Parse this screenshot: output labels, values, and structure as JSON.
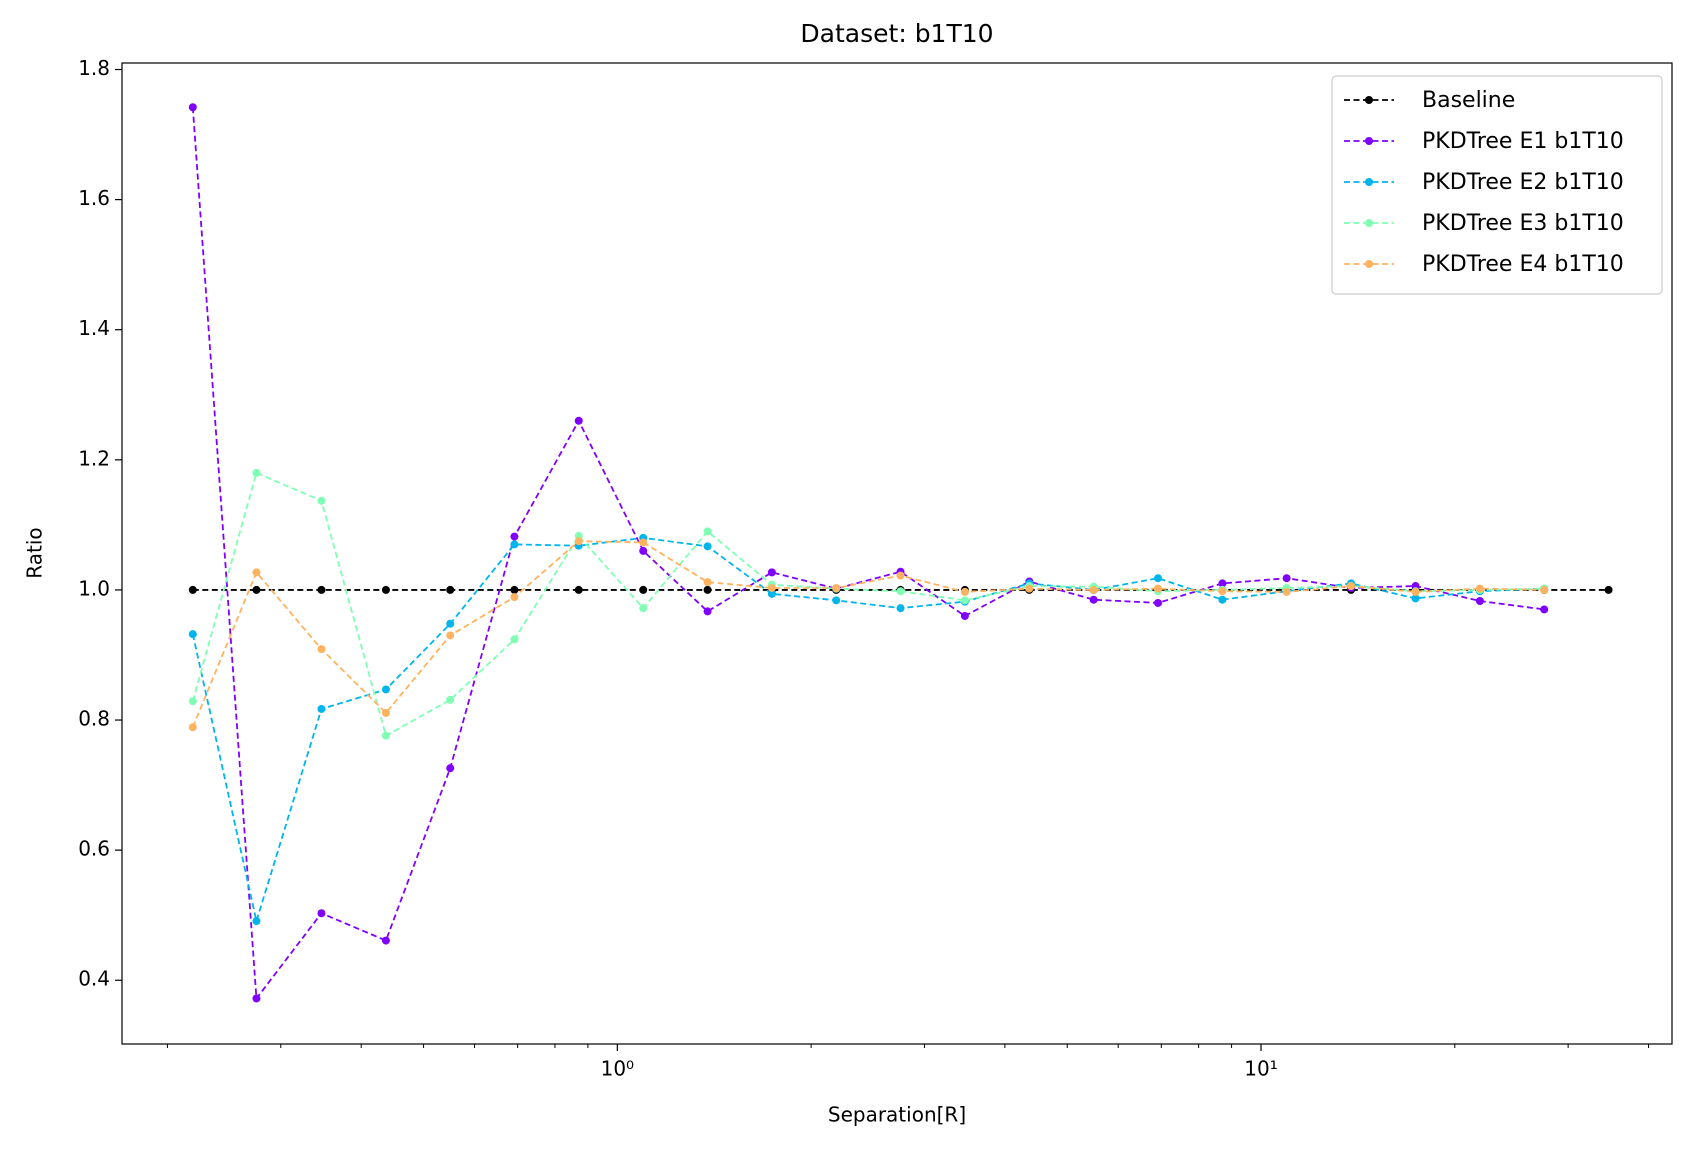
{
  "chart_data": {
    "type": "line",
    "title": "Dataset: b1T10",
    "x_label": "Separation[R]",
    "y_label": "Ratio",
    "xscale": "log",
    "x": [
      0.219,
      0.275,
      0.347,
      0.437,
      0.55,
      0.692,
      0.871,
      1.097,
      1.381,
      1.738,
      2.188,
      2.754,
      3.467,
      4.365,
      5.495,
      6.918,
      8.71,
      10.96,
      13.8,
      17.38,
      21.88,
      27.54,
      34.67
    ],
    "series": [
      {
        "name": "Baseline",
        "color": "#000000",
        "values": [
          1,
          1,
          1,
          1,
          1,
          1,
          1,
          1,
          1,
          1,
          1,
          1,
          1,
          1,
          1,
          1,
          1,
          1,
          1,
          1,
          1,
          1,
          1
        ]
      },
      {
        "name": "PKDTree E1 b1T10",
        "color": "#8000ff",
        "values": [
          1.742,
          0.372,
          0.503,
          0.461,
          0.726,
          1.082,
          1.26,
          1.06,
          0.967,
          1.027,
          1.002,
          1.028,
          0.96,
          1.013,
          0.985,
          0.98,
          1.01,
          1.018,
          1.003,
          1.006,
          0.983,
          0.97,
          null
        ]
      },
      {
        "name": "PKDTree E2 b1T10",
        "color": "#00b5eb",
        "values": [
          0.932,
          0.491,
          0.817,
          0.847,
          0.948,
          1.07,
          1.068,
          1.08,
          1.067,
          0.994,
          0.984,
          0.972,
          0.982,
          1.01,
          1.0,
          1.018,
          0.985,
          0.998,
          1.01,
          0.987,
          0.998,
          1.002,
          null
        ]
      },
      {
        "name": "PKDTree E3 b1T10",
        "color": "#80ffb4",
        "values": [
          0.829,
          1.18,
          1.137,
          0.776,
          0.831,
          0.924,
          1.083,
          0.972,
          1.09,
          1.008,
          1.002,
          0.998,
          0.984,
          1.006,
          1.005,
          0.998,
          1.0,
          1.003,
          1.006,
          0.998,
          1.0,
          1.002,
          null
        ]
      },
      {
        "name": "PKDTree E4 b1T10",
        "color": "#ffb360",
        "values": [
          0.789,
          1.027,
          0.909,
          0.811,
          0.93,
          0.989,
          1.075,
          1.073,
          1.012,
          1.003,
          1.003,
          1.022,
          0.997,
          1.002,
          1.0,
          1.002,
          0.998,
          0.997,
          1.006,
          0.997,
          1.002,
          1.0,
          null
        ]
      }
    ],
    "xlim": [
      0.17,
      43.5
    ],
    "xticks": [
      {
        "value": 1,
        "label": "10⁰"
      },
      {
        "value": 10,
        "label": "10¹"
      }
    ],
    "xminorticks": [
      0.2,
      0.3,
      0.4,
      0.5,
      0.6,
      0.7,
      0.8,
      0.9,
      2,
      3,
      4,
      5,
      6,
      7,
      8,
      9,
      20,
      30,
      40
    ],
    "ylim": [
      0.302,
      1.81
    ],
    "yticks": [
      0.4,
      0.6,
      0.8,
      {
        "value": 1,
        "label": "1.0"
      },
      1.2,
      1.4,
      1.6,
      1.8
    ],
    "grid": false,
    "legend": "upper right"
  }
}
